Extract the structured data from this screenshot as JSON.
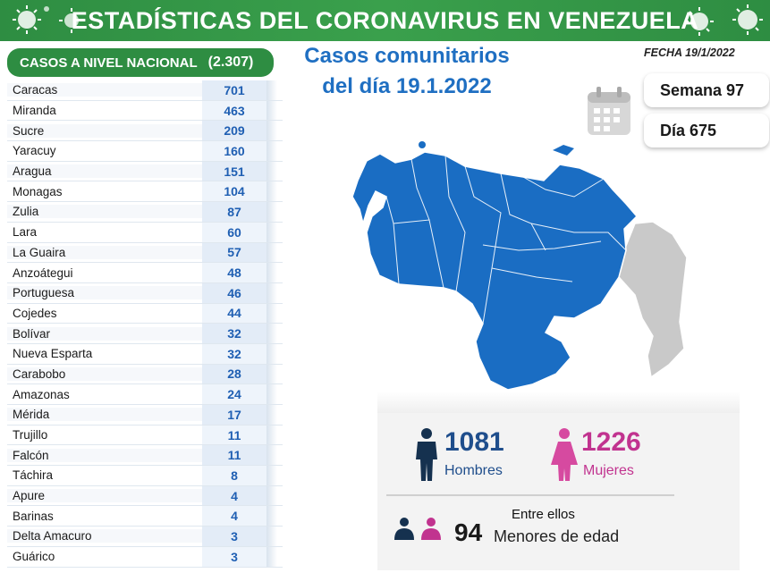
{
  "header": {
    "title": "ESTADÍSTICAS DEL CORONAVIRUS EN VENEZUELA"
  },
  "table": {
    "title": "CASOS A NIVEL NACIONAL",
    "total": "(2.307)",
    "rows": [
      {
        "state": "Caracas",
        "cases": "701"
      },
      {
        "state": "Miranda",
        "cases": "463"
      },
      {
        "state": "Sucre",
        "cases": "209"
      },
      {
        "state": "Yaracuy",
        "cases": "160"
      },
      {
        "state": "Aragua",
        "cases": "151"
      },
      {
        "state": "Monagas",
        "cases": "104"
      },
      {
        "state": "Zulia",
        "cases": "87"
      },
      {
        "state": "Lara",
        "cases": "60"
      },
      {
        "state": "La Guaira",
        "cases": "57"
      },
      {
        "state": "Anzoátegui",
        "cases": "48"
      },
      {
        "state": "Portuguesa",
        "cases": "46"
      },
      {
        "state": "Cojedes",
        "cases": "44"
      },
      {
        "state": "Bolívar",
        "cases": "32"
      },
      {
        "state": "Nueva Esparta",
        "cases": "32"
      },
      {
        "state": "Carabobo",
        "cases": "28"
      },
      {
        "state": "Amazonas",
        "cases": "24"
      },
      {
        "state": "Mérida",
        "cases": "17"
      },
      {
        "state": "Trujillo",
        "cases": "11"
      },
      {
        "state": "Falcón",
        "cases": "11"
      },
      {
        "state": "Táchira",
        "cases": "8"
      },
      {
        "state": "Apure",
        "cases": "4"
      },
      {
        "state": "Barinas",
        "cases": "4"
      },
      {
        "state": "Delta Amacuro",
        "cases": "3"
      },
      {
        "state": "Guárico",
        "cases": "3"
      }
    ]
  },
  "subtitle": {
    "line1": "Casos comunitarios",
    "line2": "del día 19.1.2022"
  },
  "fecha": "FECHA 19/1/2022",
  "semana": "Semana 97",
  "dia": "Día 675",
  "stats": {
    "hombres": {
      "value": "1081",
      "label": "Hombres",
      "color": "#1f4e8c"
    },
    "mujeres": {
      "value": "1226",
      "label": "Mujeres",
      "color": "#c1338f"
    },
    "menores": {
      "intro": "Entre ellos",
      "value": "94",
      "label": "Menores de edad"
    }
  },
  "colors": {
    "green": "#2e8d42",
    "blue": "#1f6fc2",
    "map_blue": "#1a6dc3",
    "map_gray": "#c9c9c9"
  },
  "icons": [
    "virus-icon",
    "calendar-icon",
    "man-icon",
    "woman-icon",
    "people-icon"
  ]
}
